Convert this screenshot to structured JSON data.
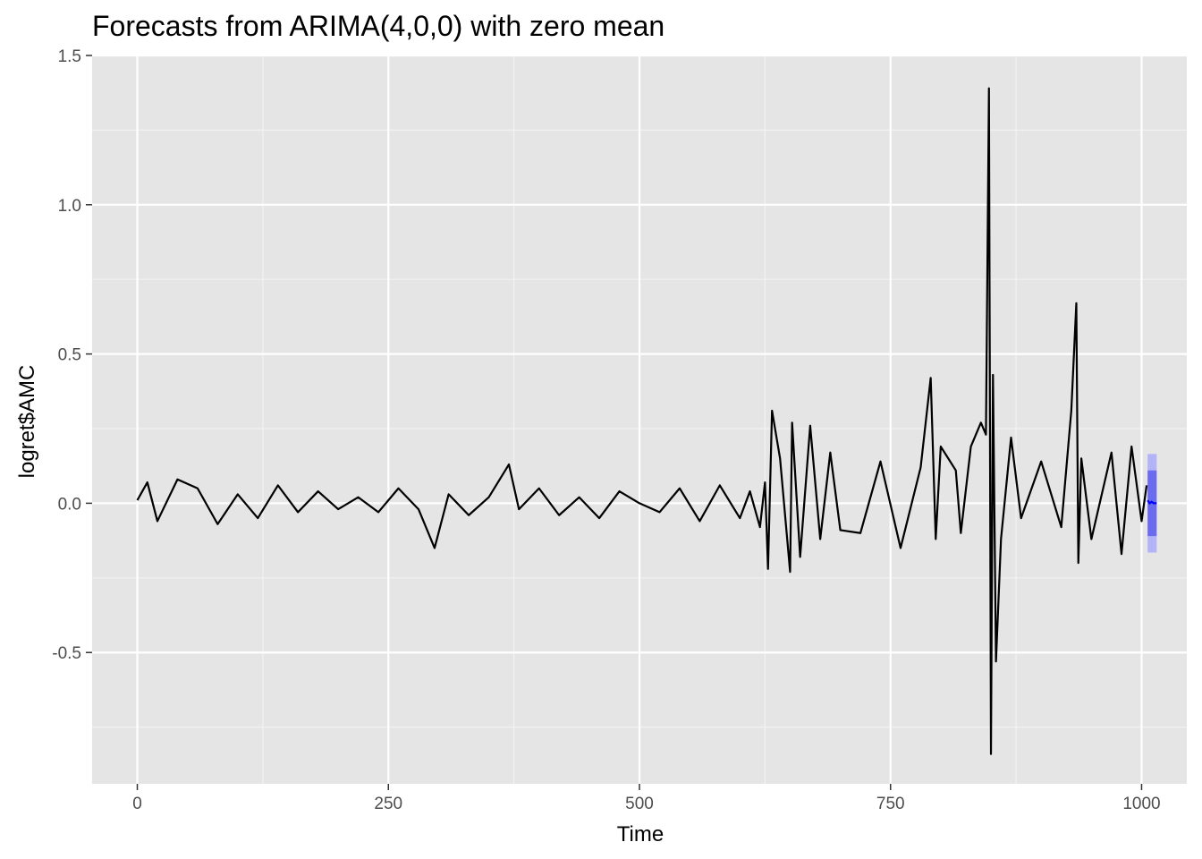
{
  "chart_data": {
    "type": "line",
    "title": "Forecasts from ARIMA(4,0,0) with zero mean",
    "xlabel": "Time",
    "ylabel": "logret$AMC",
    "xlim": [
      -45,
      1045
    ],
    "ylim": [
      -0.94,
      1.5
    ],
    "x_ticks": [
      0,
      250,
      500,
      750,
      1000
    ],
    "x_tick_labels": [
      "0",
      "250",
      "500",
      "750",
      "1000"
    ],
    "y_ticks": [
      -0.5,
      0.0,
      0.5,
      1.0,
      1.5
    ],
    "y_tick_labels": [
      "-0.5",
      "0.0",
      "0.5",
      "1.0",
      "1.5"
    ],
    "grid": true,
    "colors": {
      "panel_background": "#e5e5e5",
      "grid_major": "#ffffff",
      "grid_minor": "#f2f2f2",
      "series": "#000000",
      "forecast_line": "#0000ff",
      "interval_80": "#6b6bf0",
      "interval_95": "#b3b3f8"
    },
    "series": [
      {
        "kind": "observed",
        "x": [
          0,
          10,
          20,
          40,
          60,
          80,
          100,
          120,
          140,
          160,
          180,
          200,
          220,
          240,
          260,
          280,
          296,
          310,
          330,
          350,
          370,
          380,
          400,
          420,
          440,
          460,
          480,
          500,
          520,
          540,
          560,
          580,
          600,
          610,
          620,
          625,
          628,
          632,
          640,
          650,
          652,
          660,
          670,
          680,
          690,
          700,
          720,
          740,
          760,
          780,
          790,
          795,
          800,
          815,
          820,
          830,
          840,
          845,
          848,
          850,
          852,
          855,
          860,
          870,
          880,
          900,
          920,
          930,
          935,
          937,
          940,
          950,
          970,
          980,
          990,
          1000,
          1005
        ],
        "y": [
          0.01,
          0.07,
          -0.06,
          0.08,
          0.05,
          -0.07,
          0.03,
          -0.05,
          0.06,
          -0.03,
          0.04,
          -0.02,
          0.02,
          -0.03,
          0.05,
          -0.02,
          -0.15,
          0.03,
          -0.04,
          0.02,
          0.13,
          -0.02,
          0.05,
          -0.04,
          0.02,
          -0.05,
          0.04,
          0.0,
          -0.03,
          0.05,
          -0.06,
          0.06,
          -0.05,
          0.04,
          -0.08,
          0.07,
          -0.22,
          0.31,
          0.15,
          -0.23,
          0.27,
          -0.18,
          0.26,
          -0.12,
          0.17,
          -0.09,
          -0.1,
          0.14,
          -0.15,
          0.12,
          0.42,
          -0.12,
          0.19,
          0.11,
          -0.1,
          0.19,
          0.27,
          0.23,
          1.39,
          -0.84,
          0.43,
          -0.53,
          -0.12,
          0.22,
          -0.05,
          0.14,
          -0.08,
          0.31,
          0.67,
          -0.2,
          0.15,
          -0.12,
          0.17,
          -0.17,
          0.19,
          -0.06,
          0.06
        ]
      },
      {
        "kind": "forecast",
        "x": [
          1006,
          1008,
          1010,
          1012,
          1015
        ],
        "y": [
          0.01,
          0.0,
          0.005,
          0.0,
          0.0
        ],
        "lower_80": [
          -0.11,
          -0.11,
          -0.11,
          -0.11,
          -0.11
        ],
        "upper_80": [
          0.11,
          0.11,
          0.11,
          0.11,
          0.11
        ],
        "lower_95": [
          -0.165,
          -0.165,
          -0.165,
          -0.165,
          -0.165
        ],
        "upper_95": [
          0.165,
          0.165,
          0.165,
          0.165,
          0.165
        ]
      }
    ]
  }
}
